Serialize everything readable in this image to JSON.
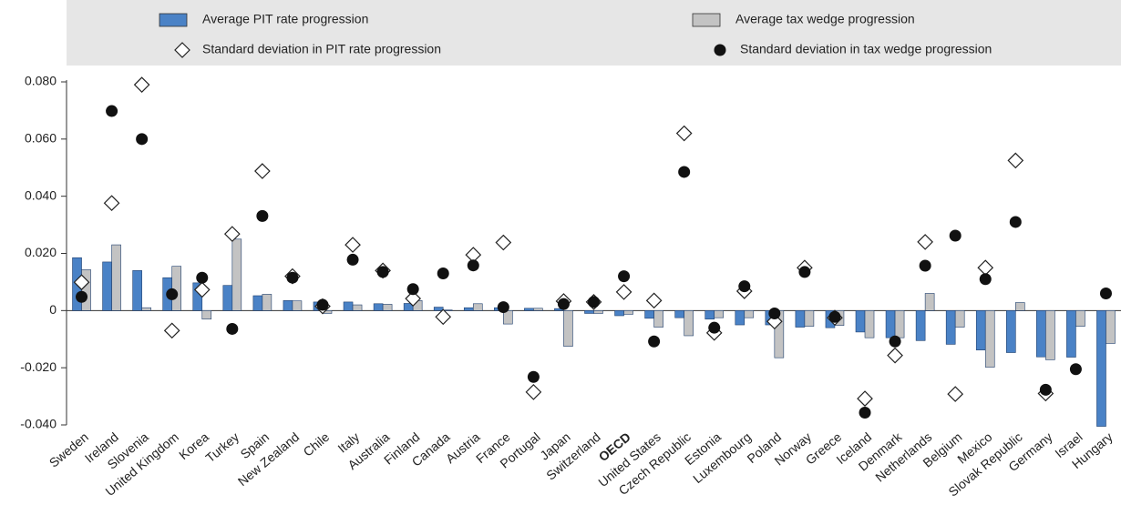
{
  "chart_data": {
    "type": "bar",
    "categories": [
      "Sweden",
      "Ireland",
      "Slovenia",
      "United Kingdom",
      "Korea",
      "Turkey",
      "Spain",
      "New Zealand",
      "Chile",
      "Italy",
      "Australia",
      "Finland",
      "Canada",
      "Austria",
      "France",
      "Portugal",
      "Japan",
      "Switzerland",
      "OECD",
      "United States",
      "Czech Republic",
      "Estonia",
      "Luxembourg",
      "Poland",
      "Norway",
      "Greece",
      "Iceland",
      "Denmark",
      "Netherlands",
      "Belgium",
      "Mexico",
      "Slovak Republic",
      "Germany",
      "Israel",
      "Hungary"
    ],
    "series": [
      {
        "name": "Average PIT rate progression",
        "color": "#4a82c6",
        "marker": "bar",
        "values": [
          0.0185,
          0.017,
          0.014,
          0.0115,
          0.0097,
          0.0088,
          0.0052,
          0.0035,
          0.003,
          0.003,
          0.0024,
          0.0025,
          0.0012,
          0.001,
          0.001,
          0.0008,
          0.0007,
          -0.001,
          -0.0018,
          -0.0027,
          -0.0025,
          -0.003,
          -0.005,
          -0.005,
          -0.0058,
          -0.006,
          -0.0075,
          -0.0095,
          -0.0105,
          -0.0118,
          -0.0138,
          -0.0147,
          -0.0162,
          -0.0163,
          -0.0405
        ]
      },
      {
        "name": "Average tax wedge progression",
        "color": "#c3c3c3",
        "marker": "bar",
        "values": [
          0.0143,
          0.023,
          0.001,
          0.0155,
          -0.003,
          0.025,
          0.0057,
          0.0034,
          -0.001,
          0.002,
          0.0022,
          0.0035,
          0.0002,
          0.0024,
          -0.0047,
          0.0008,
          -0.0125,
          -0.001,
          -0.0013,
          -0.0058,
          -0.0088,
          -0.0025,
          -0.0025,
          -0.0165,
          -0.0055,
          -0.0052,
          -0.0095,
          -0.0095,
          0.006,
          -0.0058,
          -0.0198,
          0.0028,
          -0.0172,
          -0.0055,
          -0.0115
        ]
      },
      {
        "name": "Standard deviation in PIT rate progression",
        "color": "#ffffff",
        "marker": "diamond",
        "values": [
          0.0099,
          0.0376,
          0.079,
          -0.007,
          0.0073,
          0.0268,
          0.0488,
          0.012,
          0.0015,
          0.023,
          0.014,
          0.0042,
          -0.0022,
          0.0195,
          0.0238,
          -0.0285,
          0.0033,
          0.003,
          0.0065,
          0.0035,
          0.062,
          -0.0078,
          0.0068,
          -0.0038,
          0.015,
          -0.0025,
          -0.0308,
          -0.0157,
          0.024,
          -0.0292,
          0.015,
          0.0525,
          -0.029,
          null,
          null
        ]
      },
      {
        "name": "Standard deviation in tax wedge progression",
        "color": "#111111",
        "marker": "circle",
        "values": [
          0.0048,
          0.0698,
          0.06,
          0.0057,
          0.0115,
          -0.0064,
          0.0331,
          0.0115,
          0.002,
          0.0178,
          0.0135,
          0.0075,
          0.013,
          0.0158,
          0.0012,
          -0.0232,
          0.0023,
          0.003,
          0.012,
          -0.0108,
          0.0485,
          -0.006,
          0.0085,
          -0.001,
          0.0135,
          -0.0022,
          -0.0357,
          -0.0108,
          0.0157,
          0.0262,
          0.011,
          0.031,
          -0.0277,
          -0.0205,
          0.006
        ]
      }
    ],
    "ylim": [
      -0.04,
      0.08
    ],
    "yticks": [
      {
        "value": -0.04,
        "label": "-0.040"
      },
      {
        "value": -0.02,
        "label": "-0.020"
      },
      0,
      {
        "value": 0.02,
        "label": "0.020"
      },
      {
        "value": 0.04,
        "label": "0.040"
      },
      {
        "value": 0.06,
        "label": "0.060"
      },
      {
        "value": 0.08,
        "label": "0.080"
      }
    ],
    "grid": false,
    "highlight_category": "OECD"
  }
}
